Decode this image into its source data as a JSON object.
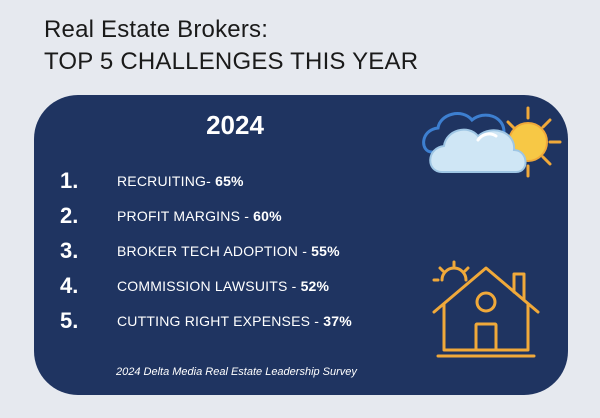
{
  "header": {
    "line1": "Real Estate Brokers:",
    "line2": "TOP 5 CHALLENGES THIS YEAR"
  },
  "card": {
    "year": "2024",
    "items": [
      {
        "num": "1.",
        "label": "RECRUITING-",
        "pct": "65%"
      },
      {
        "num": "2.",
        "label": "PROFIT MARGINS -",
        "pct": "60%"
      },
      {
        "num": "3.",
        "label": "BROKER TECH ADOPTION -",
        "pct": "55%"
      },
      {
        "num": "4.",
        "label": "COMMISSION LAWSUITS -",
        "pct": "52%"
      },
      {
        "num": "5.",
        "label": "CUTTING RIGHT EXPENSES -",
        "pct": "37%"
      }
    ],
    "source": "2024 Delta Media Real Estate Leadership Survey"
  },
  "icons": {
    "weather": "cloud-sun-icon",
    "house": "house-icon"
  },
  "colors": {
    "background": "#e6e9ef",
    "card": "#1f3461",
    "accent": "#f0a93a",
    "cloud": "#cfe6f5"
  }
}
